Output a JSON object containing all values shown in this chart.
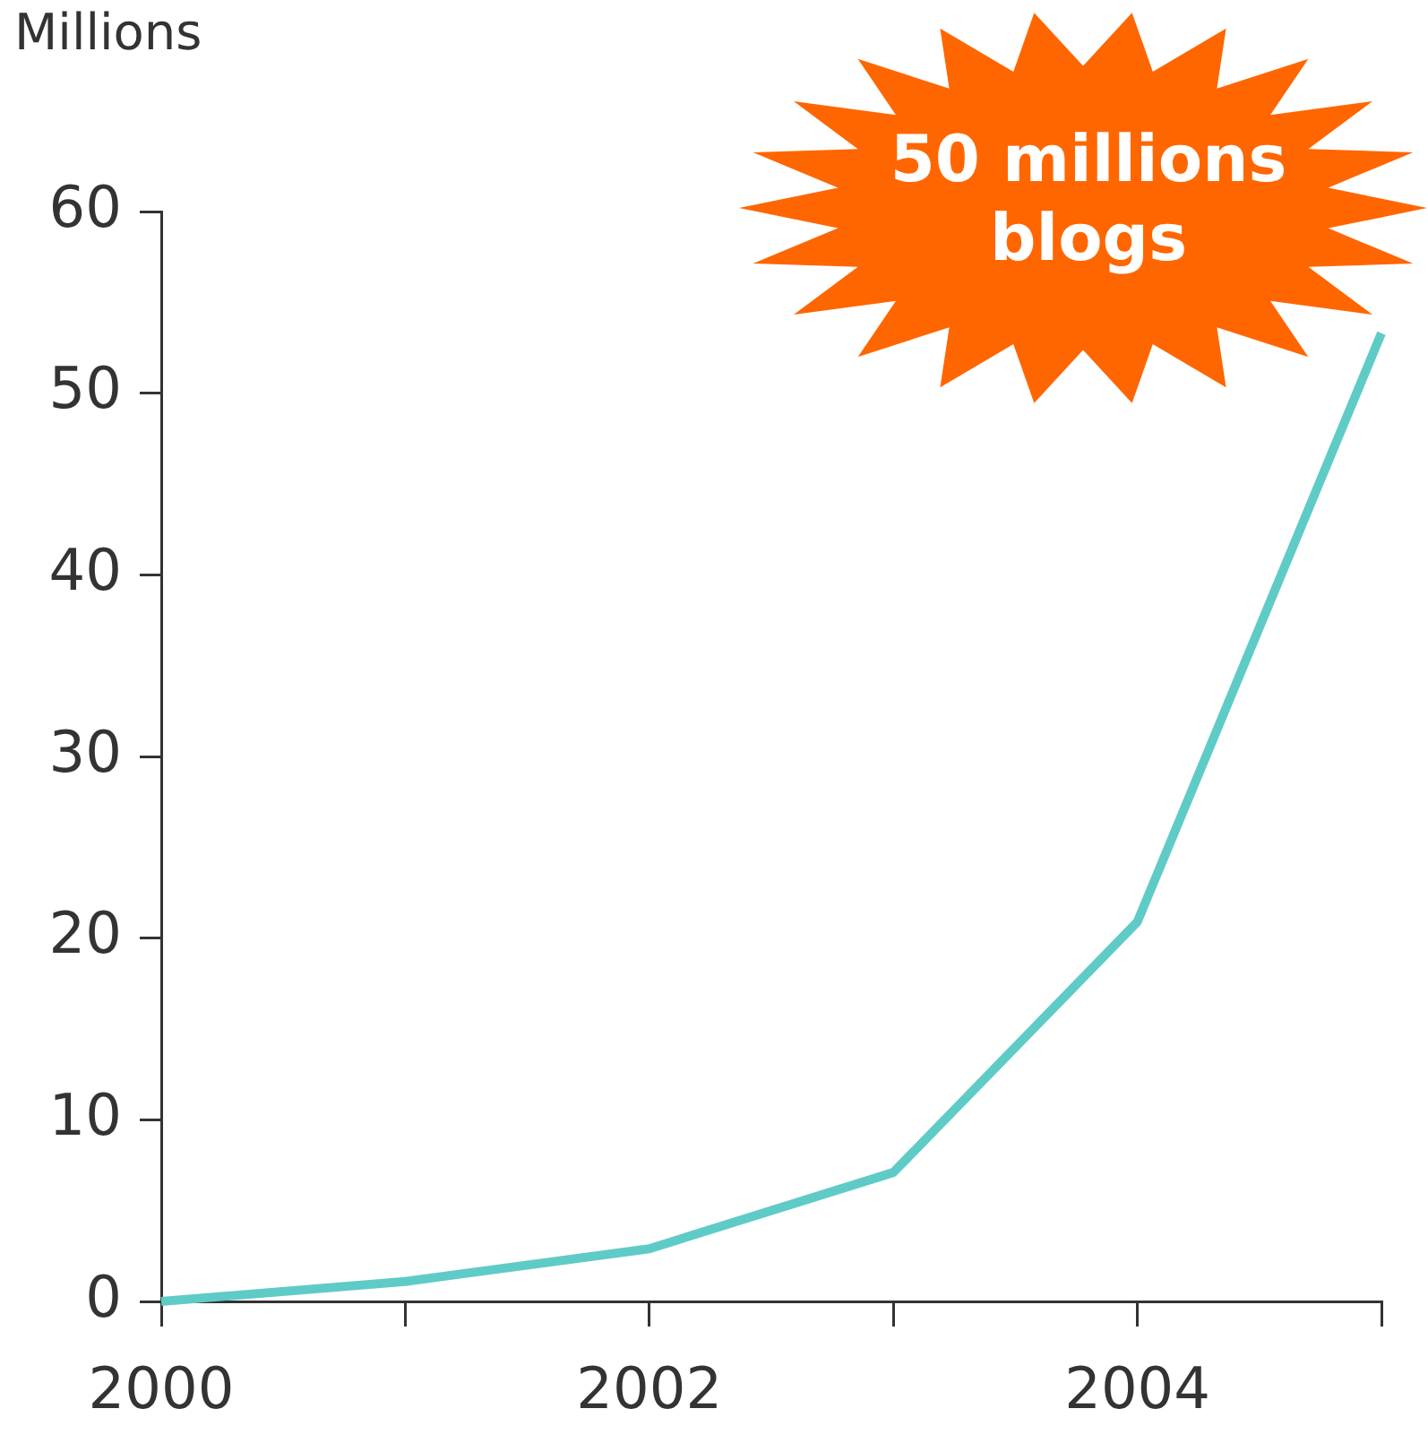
{
  "chart_data": {
    "type": "line",
    "ylabel": "Millions",
    "x": [
      2000,
      2001,
      2002,
      2003,
      2004,
      2005
    ],
    "series": [
      {
        "color": "#5fcbc7",
        "values": [
          0,
          1.1,
          2.9,
          7.1,
          20.9,
          53.3
        ]
      }
    ],
    "xlim": [
      2000,
      2005
    ],
    "xticks": [
      2000,
      {
        "value": 2001,
        "label": null
      },
      2002,
      {
        "value": 2003,
        "label": null
      },
      2004,
      {
        "value": 2005,
        "label": null
      }
    ],
    "ylim": [
      0,
      60
    ],
    "yticks": [
      0,
      10,
      20,
      30,
      40,
      50,
      60
    ],
    "grid": false,
    "legend": false,
    "marker": "none",
    "line_style": "solid",
    "annotations": [
      "50 millions blogs"
    ]
  }
}
